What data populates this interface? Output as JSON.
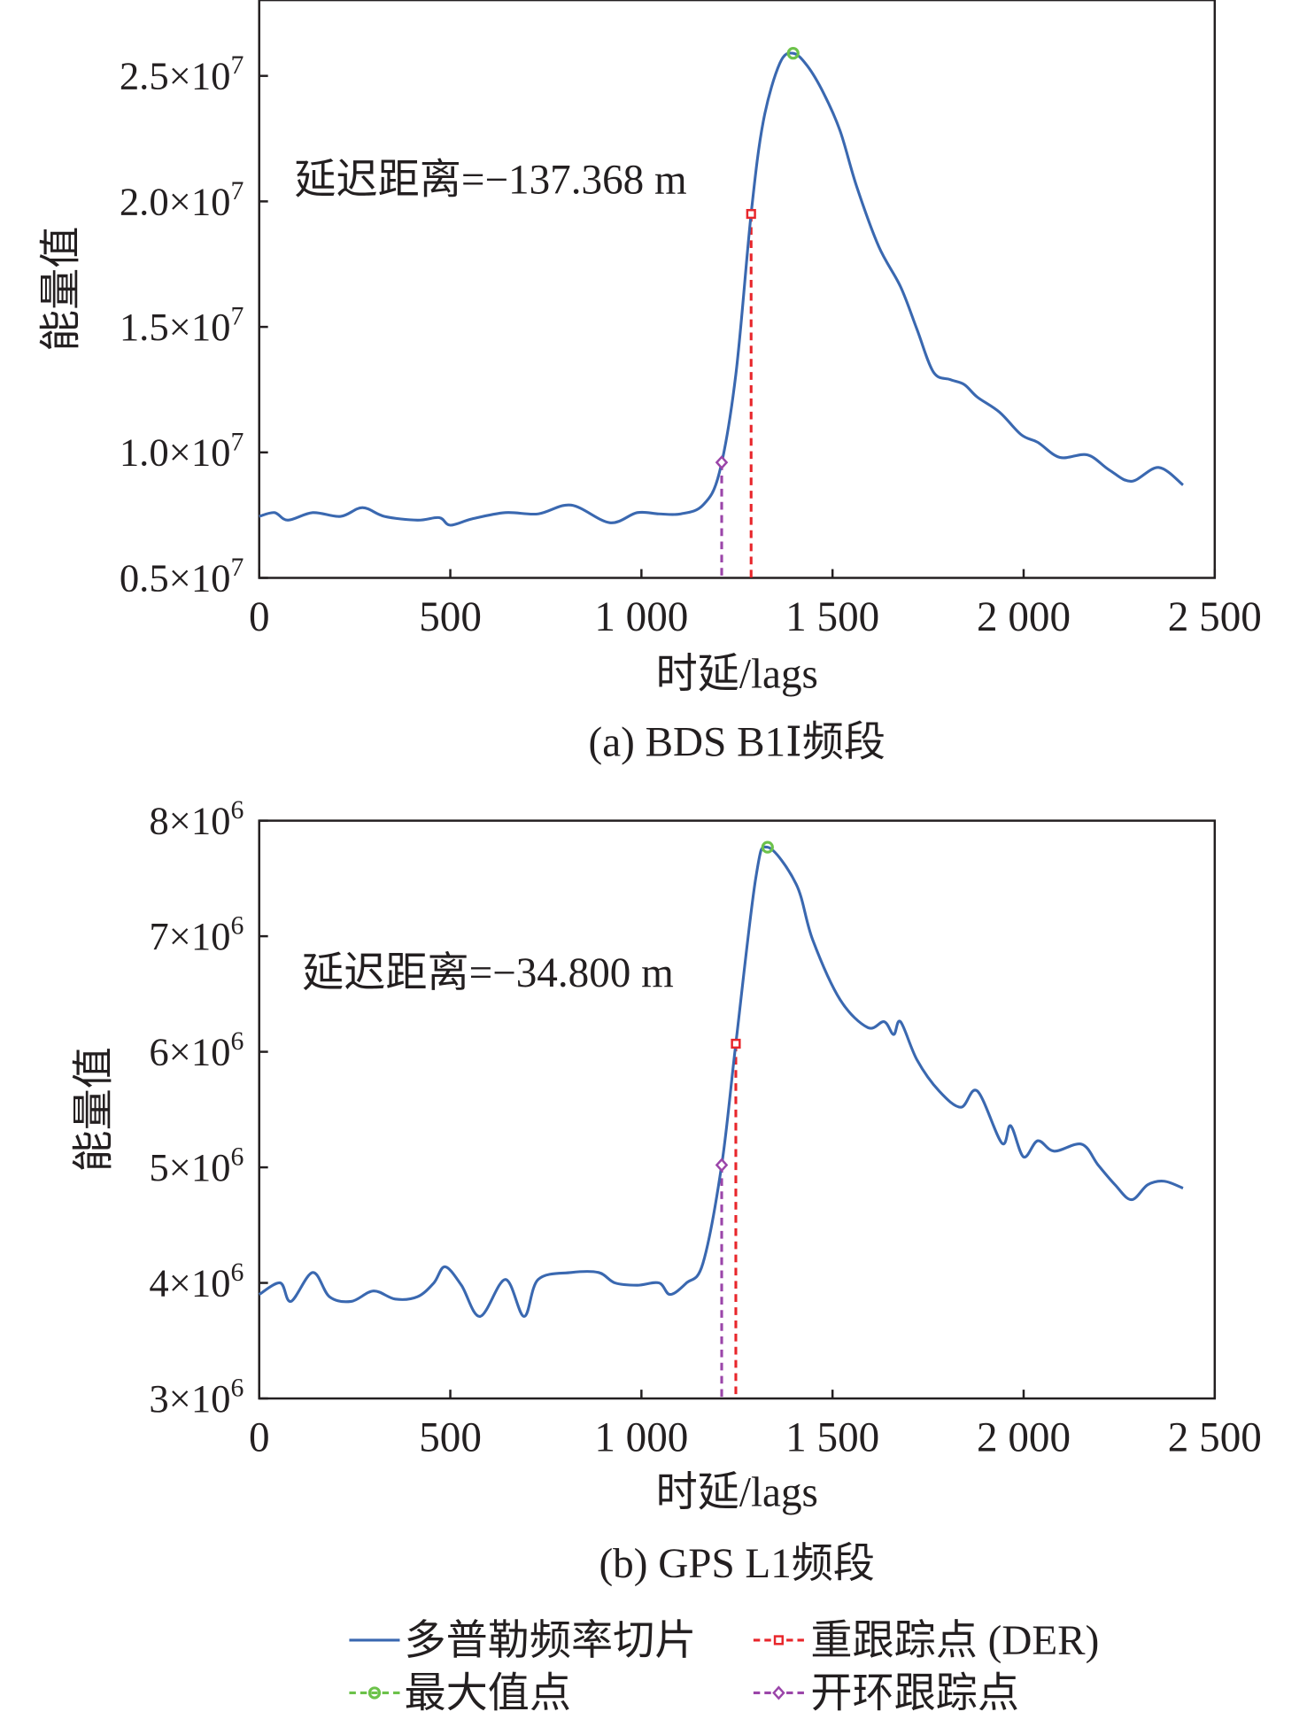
{
  "colors": {
    "curve": "#3a68b0",
    "der": "#e8262b",
    "max": "#6cc24a",
    "open": "#9b45a9",
    "axis": "#231f20"
  },
  "chart_data": [
    {
      "type": "line",
      "caption": "(a) BDS B1Ⅰ频段",
      "xlabel": "时延/lags",
      "ylabel": "能量值",
      "annotation": "延迟距离=−137.368 m",
      "xlim": [
        0,
        2500
      ],
      "ylim": [
        5000000,
        27000000
      ],
      "xticks": [
        0,
        500,
        1000,
        1500,
        2000,
        2500
      ],
      "xtick_labels": [
        "0",
        "500",
        "1 000",
        "1 500",
        "2 000",
        "2 500"
      ],
      "yticks": [
        5000000,
        10000000,
        15000000,
        20000000,
        25000000
      ],
      "ytick_labels": [
        {
          "m": "0.5×10",
          "e": "7"
        },
        {
          "m": "1.0×10",
          "e": "7"
        },
        {
          "m": "1.5×10",
          "e": "7"
        },
        {
          "m": "2.0×10",
          "e": "7"
        },
        {
          "m": "2.5×10",
          "e": "7"
        }
      ],
      "series": {
        "name": "多普勒频率切片",
        "x": [
          0,
          40,
          75,
          140,
          213,
          270,
          328,
          414,
          471,
          500,
          557,
          644,
          730,
          816,
          917,
          989,
          1046,
          1103,
          1161,
          1204,
          1247,
          1287,
          1319,
          1362,
          1397,
          1434,
          1477,
          1520,
          1563,
          1621,
          1678,
          1721,
          1764,
          1808,
          1845,
          1879,
          1937,
          1994,
          2037,
          2095,
          2167,
          2224,
          2282,
          2353,
          2417
        ],
        "y": [
          7450000,
          7600000,
          7300000,
          7600000,
          7450000,
          7800000,
          7450000,
          7300000,
          7400000,
          7100000,
          7350000,
          7600000,
          7550000,
          7900000,
          7200000,
          7600000,
          7550000,
          7550000,
          7900000,
          9200000,
          13100000,
          19500000,
          23200000,
          25500000,
          25900000,
          25400000,
          24300000,
          22800000,
          20600000,
          18200000,
          16600000,
          14900000,
          13200000,
          12900000,
          12700000,
          12200000,
          11600000,
          10700000,
          10400000,
          9800000,
          9900000,
          9300000,
          8850000,
          9400000,
          8700000
        ]
      },
      "points": {
        "max": {
          "x": 1397,
          "y": 25900000
        },
        "der": {
          "x": 1287,
          "y": 19500000
        },
        "open": {
          "x": 1210,
          "y": 9600000
        }
      }
    },
    {
      "type": "line",
      "caption": "(b) GPS L1频段",
      "xlabel": "时延/lags",
      "ylabel": "能量值",
      "annotation": "延迟距离=−34.800 m",
      "xlim": [
        0,
        2500
      ],
      "ylim": [
        3000000,
        8000000
      ],
      "xticks": [
        0,
        500,
        1000,
        1500,
        2000,
        2500
      ],
      "xtick_labels": [
        "0",
        "500",
        "1 000",
        "1 500",
        "2 000",
        "2 500"
      ],
      "yticks": [
        3000000,
        4000000,
        5000000,
        6000000,
        7000000,
        8000000
      ],
      "ytick_labels": [
        {
          "m": "3×10",
          "e": "6"
        },
        {
          "m": "4×10",
          "e": "6"
        },
        {
          "m": "5×10",
          "e": "6"
        },
        {
          "m": "6×10",
          "e": "6"
        },
        {
          "m": "7×10",
          "e": "6"
        },
        {
          "m": "8×10",
          "e": "6"
        }
      ],
      "series": {
        "name": "多普勒频率切片",
        "x": [
          0,
          55,
          83,
          140,
          184,
          241,
          299,
          356,
          414,
          457,
          486,
          529,
          578,
          644,
          693,
          730,
          816,
          888,
          931,
          989,
          1046,
          1075,
          1118,
          1161,
          1210,
          1247,
          1299,
          1330,
          1405,
          1448,
          1520,
          1592,
          1635,
          1660,
          1678,
          1721,
          1779,
          1836,
          1879,
          1943,
          1966,
          2000,
          2037,
          2080,
          2152,
          2195,
          2239,
          2282,
          2325,
          2368,
          2417
        ],
        "y": [
          3900000,
          4000000,
          3840000,
          4090000,
          3880000,
          3840000,
          3930000,
          3860000,
          3880000,
          4000000,
          4140000,
          3980000,
          3710000,
          4030000,
          3710000,
          4030000,
          4090000,
          4090000,
          4000000,
          3980000,
          4000000,
          3900000,
          4000000,
          4170000,
          5020000,
          6070000,
          7500000,
          7770000,
          7450000,
          6970000,
          6450000,
          6210000,
          6260000,
          6150000,
          6260000,
          5930000,
          5660000,
          5520000,
          5660000,
          5210000,
          5360000,
          5090000,
          5230000,
          5140000,
          5200000,
          5020000,
          4850000,
          4720000,
          4850000,
          4880000,
          4820000
        ]
      },
      "points": {
        "max": {
          "x": 1330,
          "y": 7770000
        },
        "der": {
          "x": 1247,
          "y": 6070000
        },
        "open": {
          "x": 1210,
          "y": 5020000
        }
      }
    }
  ],
  "legend": [
    {
      "label": "多普勒频率切片",
      "key": "curve"
    },
    {
      "label": "重跟踪点 (DER)",
      "key": "der"
    },
    {
      "label": "最大值点",
      "key": "max"
    },
    {
      "label": "开环跟踪点",
      "key": "open"
    }
  ]
}
